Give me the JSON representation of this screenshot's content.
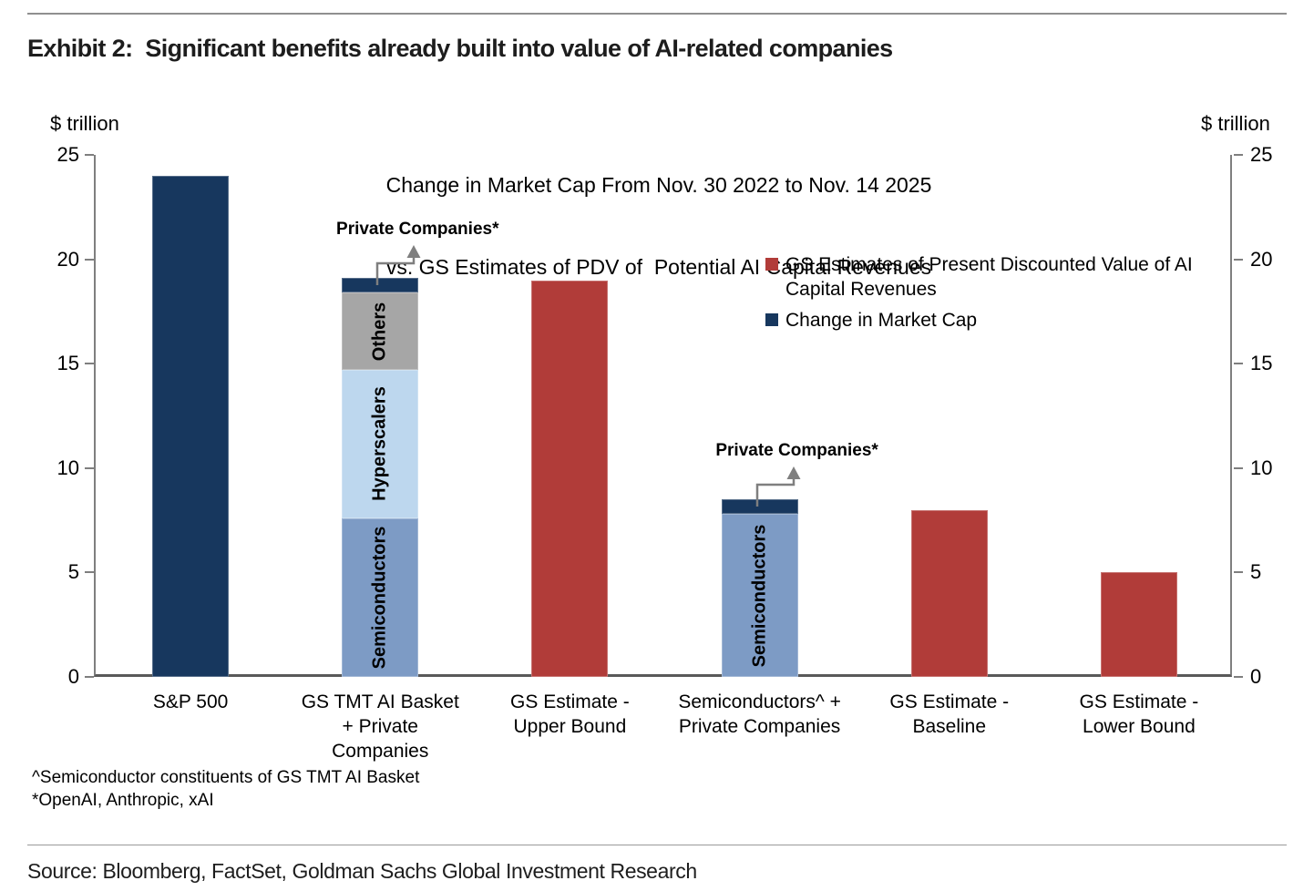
{
  "exhibit": {
    "title": "Exhibit 2:  Significant benefits already built into value of AI-related companies",
    "source": "Source: Bloomberg, FactSet, Goldman Sachs Global Investment Research"
  },
  "chart_data": {
    "type": "bar",
    "title_line1": "Change in Market Cap From Nov. 30 2022 to Nov. 14 2025",
    "title_line2": "vs. GS Estimates of PDV of  Potential AI Capital Revenues",
    "ylabel_left": "$ trillion",
    "ylabel_right": "$ trillion",
    "ylim": [
      0,
      25
    ],
    "yticks": [
      0,
      5,
      10,
      15,
      20,
      25
    ],
    "grid": false,
    "legend_position": "upper-right-inside",
    "colors": {
      "market_cap_navy": "#17375E",
      "gs_estimate_red": "#B13C39",
      "semiconductors_blue": "#7D9BC5",
      "hyperscalers_light_blue": "#BDD7EE",
      "others_gray": "#A6A6A6",
      "annotation_arrow_gray": "#7F7F7F"
    },
    "legend": [
      {
        "label": "GS Estimates of Present Discounted Value of AI Capital Revenues",
        "color": "#B13C39"
      },
      {
        "label": "Change in Market Cap",
        "color": "#17375E"
      }
    ],
    "categories": [
      "S&P 500",
      "GS TMT AI Basket + Private Companies",
      "GS Estimate - Upper Bound",
      "Semiconductors^ + Private Companies",
      "GS Estimate - Baseline",
      "GS Estimate - Lower Bound"
    ],
    "bars": [
      {
        "category": "S&P 500",
        "label_lines": [
          "S&P 500"
        ],
        "total": 24.0,
        "segments": [
          {
            "name": "Change in Market Cap",
            "value": 24.0,
            "color": "#17375E"
          }
        ]
      },
      {
        "category": "GS TMT AI Basket + Private Companies",
        "label_lines": [
          "GS TMT AI Basket",
          "+ Private",
          "Companies"
        ],
        "total": 19.1,
        "annotation": "Private Companies*",
        "segments": [
          {
            "name": "Semiconductors",
            "value": 7.6,
            "color": "#7D9BC5",
            "text": "Semiconductors"
          },
          {
            "name": "Hyperscalers",
            "value": 7.1,
            "color": "#BDD7EE",
            "text": "Hyperscalers"
          },
          {
            "name": "Others",
            "value": 3.7,
            "color": "#A6A6A6",
            "text": "Others"
          },
          {
            "name": "Private Companies",
            "value": 0.7,
            "color": "#17375E"
          }
        ]
      },
      {
        "category": "GS Estimate - Upper Bound",
        "label_lines": [
          "GS Estimate -",
          "Upper Bound"
        ],
        "total": 19.0,
        "segments": [
          {
            "name": "GS Estimate of PDV of AI Capital Revenues",
            "value": 19.0,
            "color": "#B13C39"
          }
        ]
      },
      {
        "category": "Semiconductors^ + Private Companies",
        "label_lines": [
          "Semiconductors^ +",
          "Private Companies"
        ],
        "total": 8.5,
        "annotation": "Private Companies*",
        "segments": [
          {
            "name": "Semiconductors",
            "value": 7.8,
            "color": "#7D9BC5",
            "text": "Semiconductors"
          },
          {
            "name": "Private Companies",
            "value": 0.7,
            "color": "#17375E"
          }
        ]
      },
      {
        "category": "GS Estimate - Baseline",
        "label_lines": [
          "GS Estimate -",
          "Baseline"
        ],
        "total": 8.0,
        "segments": [
          {
            "name": "GS Estimate of PDV of AI Capital Revenues",
            "value": 8.0,
            "color": "#B13C39"
          }
        ]
      },
      {
        "category": "GS Estimate - Lower Bound",
        "label_lines": [
          "GS Estimate -",
          "Lower Bound"
        ],
        "total": 5.0,
        "segments": [
          {
            "name": "GS Estimate of PDV of AI Capital Revenues",
            "value": 5.0,
            "color": "#B13C39"
          }
        ]
      }
    ],
    "footnotes": [
      "^Semiconductor constituents of GS TMT AI Basket",
      "*OpenAI, Anthropic, xAI"
    ]
  }
}
